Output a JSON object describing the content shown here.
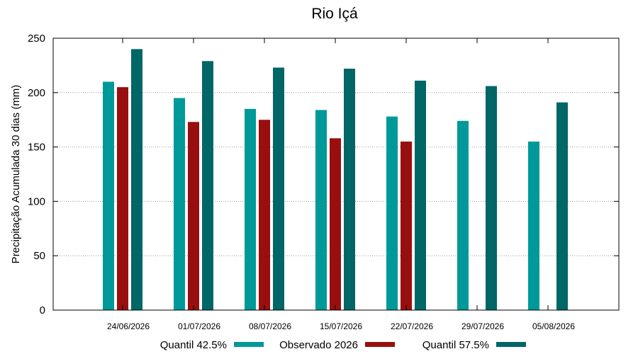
{
  "chart_data": {
    "type": "bar",
    "title": "Rio Içá",
    "ylabel": "Precipitação Acumulada 30 dias (mm)",
    "xlabel": "",
    "ylim": [
      0,
      250
    ],
    "yticks": [
      0,
      50,
      100,
      150,
      200,
      250
    ],
    "grid": true,
    "legend_position": "bottom",
    "categories": [
      "24/06/2026",
      "01/07/2026",
      "08/07/2026",
      "15/07/2026",
      "22/07/2026",
      "29/07/2026",
      "05/08/2026"
    ],
    "series": [
      {
        "name": "Quantil 42.5%",
        "color": "#009999",
        "values": [
          210,
          195,
          185,
          184,
          178,
          174,
          155
        ]
      },
      {
        "name": "Observado 2026",
        "color": "#990f0f",
        "values": [
          205,
          173,
          175,
          158,
          155,
          null,
          null
        ]
      },
      {
        "name": "Quantil 57.5%",
        "color": "#006666",
        "values": [
          240,
          229,
          223,
          222,
          211,
          206,
          191
        ]
      }
    ]
  }
}
